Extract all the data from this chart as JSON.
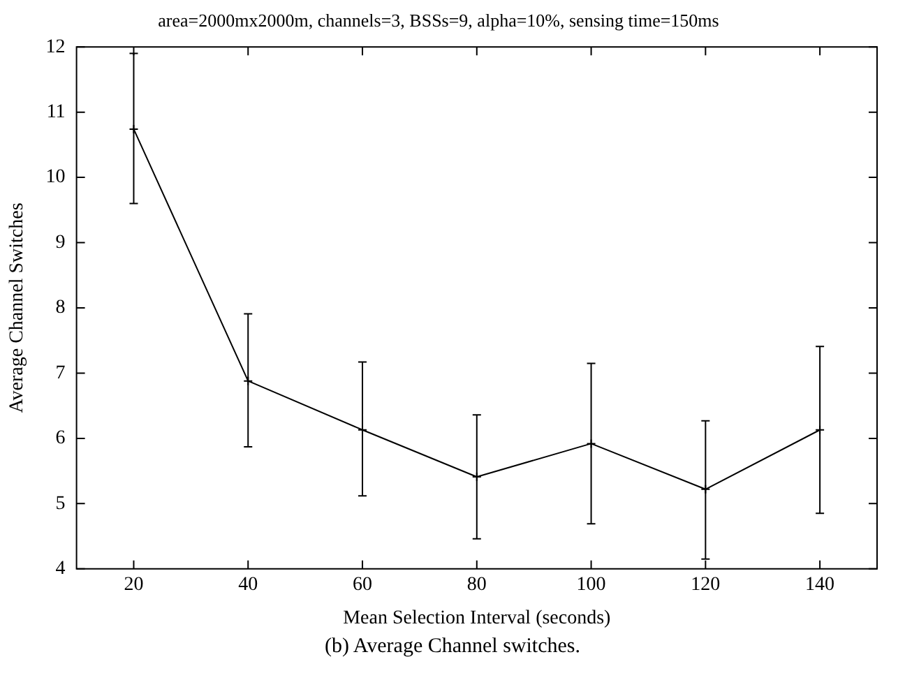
{
  "chart_data": {
    "type": "line",
    "title": "area=2000mx2000m, channels=3, BSSs=9, alpha=10%, sensing time=150ms",
    "xlabel": "Mean Selection Interval (seconds)",
    "ylabel": "Average Channel Switches",
    "annotations": [
      "(b) Average Channel switches."
    ],
    "x": [
      20,
      40,
      60,
      80,
      100,
      120,
      140
    ],
    "series": [
      {
        "color": "#000000",
        "values": [
          10.74,
          6.88,
          6.13,
          5.41,
          5.92,
          5.22,
          6.13
        ],
        "errors": [
          [
            9.6,
            11.9
          ],
          [
            5.87,
            7.91
          ],
          [
            5.12,
            7.17
          ],
          [
            4.46,
            6.36
          ],
          [
            4.69,
            7.15
          ],
          [
            4.15,
            6.27
          ],
          [
            4.85,
            7.41
          ]
        ]
      }
    ],
    "xlim": [
      10,
      150
    ],
    "xticks": [
      20,
      40,
      60,
      80,
      100,
      120,
      140
    ],
    "ylim": [
      4,
      12
    ],
    "yticks": [
      4,
      5,
      6,
      7,
      8,
      9,
      10,
      11,
      12
    ],
    "grid": false,
    "legend": false,
    "marker": "cross",
    "line_style": "solid"
  }
}
